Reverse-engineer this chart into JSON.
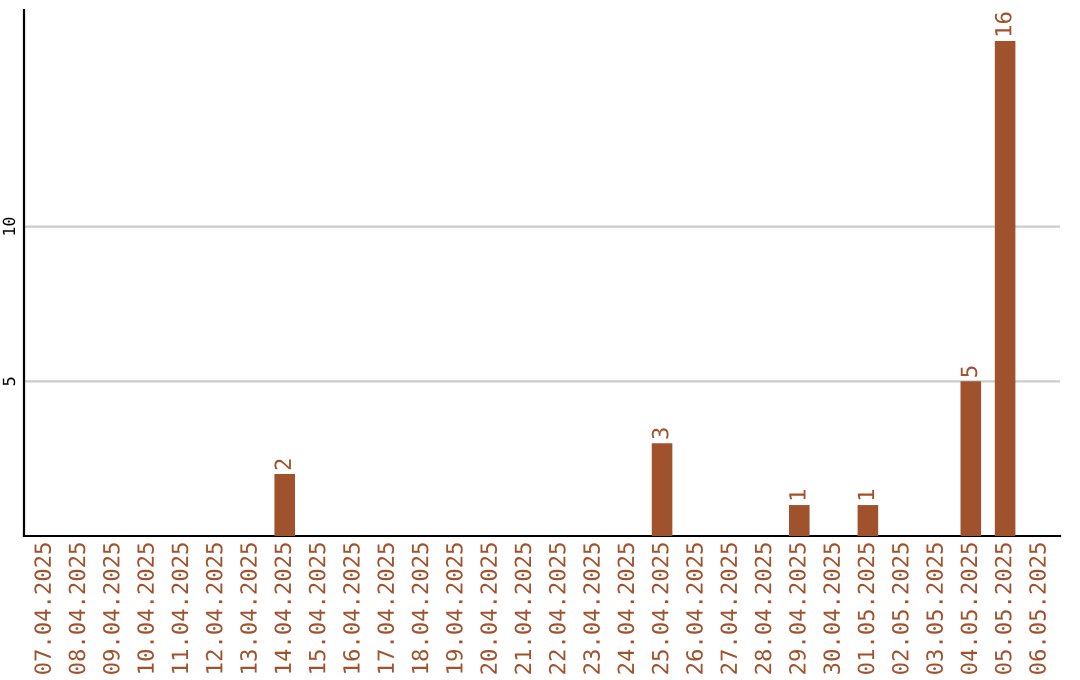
{
  "chart_data": {
    "type": "bar",
    "categories": [
      "07.04.2025",
      "08.04.2025",
      "09.04.2025",
      "10.04.2025",
      "11.04.2025",
      "12.04.2025",
      "13.04.2025",
      "14.04.2025",
      "15.04.2025",
      "16.04.2025",
      "17.04.2025",
      "18.04.2025",
      "19.04.2025",
      "20.04.2025",
      "21.04.2025",
      "22.04.2025",
      "23.04.2025",
      "24.04.2025",
      "25.04.2025",
      "26.04.2025",
      "27.04.2025",
      "28.04.2025",
      "29.04.2025",
      "30.04.2025",
      "01.05.2025",
      "02.05.2025",
      "03.05.2025",
      "04.05.2025",
      "05.05.2025",
      "06.05.2025"
    ],
    "values": [
      0,
      0,
      0,
      0,
      0,
      0,
      0,
      2,
      0,
      0,
      0,
      0,
      0,
      0,
      0,
      0,
      0,
      0,
      3,
      0,
      0,
      0,
      1,
      0,
      1,
      0,
      0,
      5,
      16,
      0
    ],
    "value_labels": [
      null,
      null,
      null,
      null,
      null,
      null,
      null,
      "2",
      null,
      null,
      null,
      null,
      null,
      null,
      null,
      null,
      null,
      null,
      "3",
      null,
      null,
      null,
      "1",
      null,
      "1",
      null,
      null,
      "5",
      "16",
      null
    ],
    "color": "#a0522d",
    "ylim": [
      0,
      17
    ],
    "yticks": [
      5,
      10
    ],
    "grid": "y"
  }
}
